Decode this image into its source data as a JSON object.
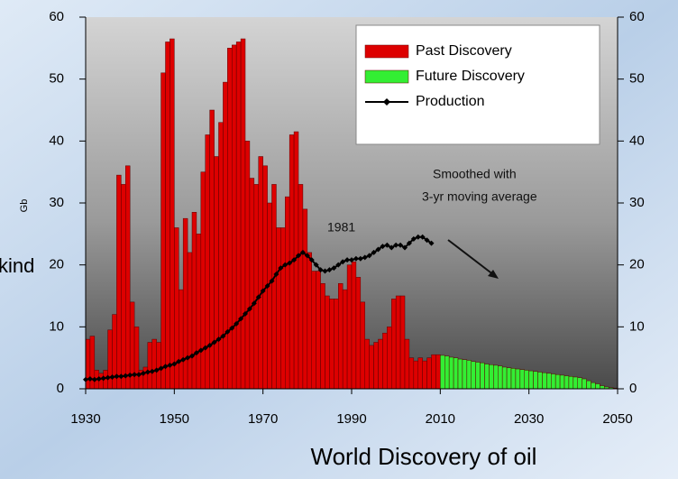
{
  "background_text": "kind",
  "caption": "World Discovery  of  oil",
  "chart_data": {
    "type": "combo",
    "ylabel": "Gb",
    "xlim": [
      1930,
      2050
    ],
    "xticks": [
      1930,
      1950,
      1970,
      1990,
      2010,
      2030,
      2050
    ],
    "ylim": [
      0,
      60
    ],
    "yticks": [
      0,
      10,
      20,
      30,
      40,
      50,
      60
    ],
    "y2lim": [
      0,
      60
    ],
    "y2ticks": [
      0,
      10,
      20,
      30,
      40,
      50,
      60
    ],
    "grid": false,
    "legend": "upper-right",
    "annotations": [
      "1981",
      "Smoothed with",
      "3-yr moving average"
    ],
    "series": [
      {
        "name": "Past Discovery",
        "type": "bar",
        "color": "#dd0000",
        "x": [
          1930,
          1931,
          1932,
          1933,
          1934,
          1935,
          1936,
          1937,
          1938,
          1939,
          1940,
          1941,
          1942,
          1943,
          1944,
          1945,
          1946,
          1947,
          1948,
          1949,
          1950,
          1951,
          1952,
          1953,
          1954,
          1955,
          1956,
          1957,
          1958,
          1959,
          1960,
          1961,
          1962,
          1963,
          1964,
          1965,
          1966,
          1967,
          1968,
          1969,
          1970,
          1971,
          1972,
          1973,
          1974,
          1975,
          1976,
          1977,
          1978,
          1979,
          1980,
          1981,
          1982,
          1983,
          1984,
          1985,
          1986,
          1987,
          1988,
          1989,
          1990,
          1991,
          1992,
          1993,
          1994,
          1995,
          1996,
          1997,
          1998,
          1999,
          2000,
          2001,
          2002,
          2003,
          2004,
          2005,
          2006,
          2007,
          2008,
          2009
        ],
        "values": [
          8,
          8.5,
          3,
          2.5,
          3,
          9.5,
          12,
          34.5,
          33,
          36,
          14,
          10,
          3,
          3.5,
          7.5,
          8,
          7.5,
          51,
          56,
          56.5,
          26,
          16,
          27.5,
          22,
          28.5,
          25,
          35,
          41,
          45,
          37.5,
          43,
          49.5,
          55,
          55.5,
          56,
          56.5,
          40,
          34,
          33,
          37.5,
          36,
          30,
          33,
          26,
          26,
          31,
          41,
          41.5,
          33,
          29,
          22,
          19,
          19,
          17,
          15,
          14.5,
          14.5,
          17,
          16,
          20,
          20.5,
          18,
          14,
          8,
          7,
          7.5,
          8,
          9,
          10,
          14.5,
          15,
          15,
          8,
          5,
          4.5,
          5,
          4.5,
          5,
          5.5,
          5.5
        ]
      },
      {
        "name": "Future Discovery",
        "type": "bar",
        "color": "#33ee33",
        "x": [
          2010,
          2011,
          2012,
          2013,
          2014,
          2015,
          2016,
          2017,
          2018,
          2019,
          2020,
          2021,
          2022,
          2023,
          2024,
          2025,
          2026,
          2027,
          2028,
          2029,
          2030,
          2031,
          2032,
          2033,
          2034,
          2035,
          2036,
          2037,
          2038,
          2039,
          2040,
          2041,
          2042,
          2043,
          2044,
          2045,
          2046,
          2047,
          2048,
          2049
        ],
        "values": [
          5.4,
          5.3,
          5.1,
          5.0,
          4.8,
          4.7,
          4.6,
          4.4,
          4.3,
          4.2,
          4.0,
          3.9,
          3.8,
          3.7,
          3.5,
          3.4,
          3.3,
          3.2,
          3.1,
          3.0,
          2.9,
          2.8,
          2.7,
          2.6,
          2.5,
          2.4,
          2.3,
          2.2,
          2.1,
          2.0,
          1.9,
          1.8,
          1.6,
          1.3,
          1.0,
          0.8,
          0.5,
          0.3,
          0.2,
          0.1
        ]
      },
      {
        "name": "Production",
        "type": "line",
        "color": "#000000",
        "x": [
          1930,
          1931,
          1932,
          1933,
          1934,
          1935,
          1936,
          1937,
          1938,
          1939,
          1940,
          1941,
          1942,
          1943,
          1944,
          1945,
          1946,
          1947,
          1948,
          1949,
          1950,
          1951,
          1952,
          1953,
          1954,
          1955,
          1956,
          1957,
          1958,
          1959,
          1960,
          1961,
          1962,
          1963,
          1964,
          1965,
          1966,
          1967,
          1968,
          1969,
          1970,
          1971,
          1972,
          1973,
          1974,
          1975,
          1976,
          1977,
          1978,
          1979,
          1980,
          1981,
          1982,
          1983,
          1984,
          1985,
          1986,
          1987,
          1988,
          1989,
          1990,
          1991,
          1992,
          1993,
          1994,
          1995,
          1996,
          1997,
          1998,
          1999,
          2000,
          2001,
          2002,
          2003,
          2004,
          2005,
          2006,
          2007,
          2008
        ],
        "values": [
          1.5,
          1.6,
          1.5,
          1.6,
          1.7,
          1.8,
          1.9,
          2.0,
          2.0,
          2.1,
          2.2,
          2.3,
          2.3,
          2.5,
          2.7,
          2.8,
          3.0,
          3.3,
          3.6,
          3.8,
          4.0,
          4.4,
          4.7,
          5.0,
          5.3,
          5.8,
          6.2,
          6.6,
          7.0,
          7.5,
          8.0,
          8.5,
          9.2,
          9.8,
          10.5,
          11.3,
          12.1,
          12.9,
          13.8,
          14.8,
          15.8,
          16.6,
          17.4,
          18.5,
          19.5,
          20.0,
          20.3,
          20.8,
          21.5,
          22.0,
          21.5,
          20.8,
          20.0,
          19.2,
          19.0,
          19.2,
          19.5,
          20.0,
          20.5,
          20.8,
          20.8,
          21.0,
          21.0,
          21.2,
          21.5,
          22.0,
          22.5,
          23.0,
          23.2,
          22.8,
          23.2,
          23.2,
          22.8,
          23.5,
          24.2,
          24.5,
          24.5,
          24.0,
          23.5
        ]
      }
    ]
  }
}
